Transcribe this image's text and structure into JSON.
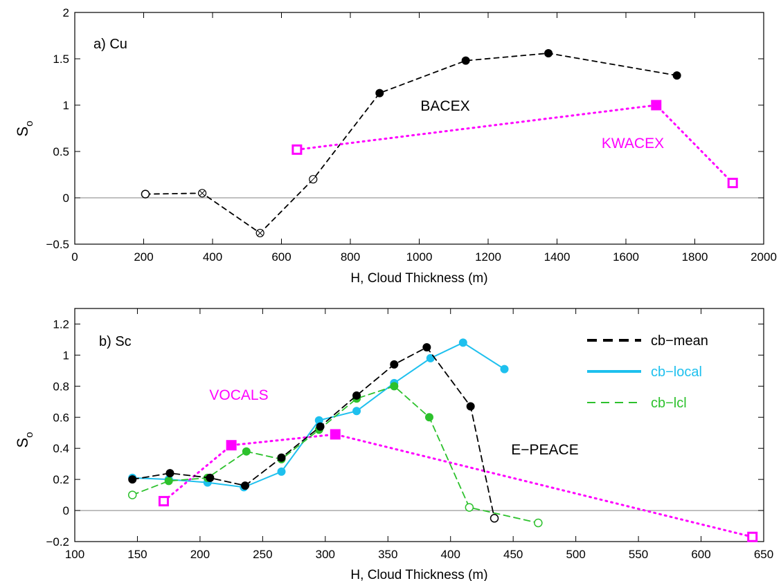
{
  "chart_data": [
    {
      "type": "scatter",
      "panel_label": "a) Cu",
      "xlabel": "H, Cloud Thickness (m)",
      "ylabel": "S",
      "ylabel_sub": "o",
      "xlim": [
        0,
        2000
      ],
      "ylim": [
        -0.5,
        2
      ],
      "xticks": [
        0,
        200,
        400,
        600,
        800,
        1000,
        1200,
        1400,
        1600,
        1800,
        2000
      ],
      "yticks": [
        -0.5,
        0,
        0.5,
        1,
        1.5,
        2
      ],
      "ytick_labels": [
        "−0.5",
        "0",
        "0.5",
        "1",
        "1.5",
        "2"
      ],
      "zero_line": true,
      "grid": false,
      "annotations": [
        {
          "text": "BACEX",
          "color": "#000000"
        },
        {
          "text": "KWACEX",
          "color": "#ff00ff"
        }
      ],
      "series": [
        {
          "key": "bacex",
          "color": "#000000",
          "line": "dashed",
          "points": [
            {
              "x": 205,
              "y": 0.04,
              "marker": "open-circle"
            },
            {
              "x": 370,
              "y": 0.05,
              "marker": "crossed-circle"
            },
            {
              "x": 538,
              "y": -0.38,
              "marker": "crossed-circle"
            },
            {
              "x": 692,
              "y": 0.2,
              "marker": "slashed-circle"
            },
            {
              "x": 885,
              "y": 1.13,
              "marker": "filled-circle"
            },
            {
              "x": 1135,
              "y": 1.48,
              "marker": "filled-circle"
            },
            {
              "x": 1375,
              "y": 1.56,
              "marker": "filled-circle"
            },
            {
              "x": 1748,
              "y": 1.32,
              "marker": "filled-circle"
            }
          ]
        },
        {
          "key": "kwacex",
          "color": "#ff00ff",
          "line": "dotted",
          "points": [
            {
              "x": 645,
              "y": 0.52,
              "marker": "open-square"
            },
            {
              "x": 1688,
              "y": 1.0,
              "marker": "filled-square"
            },
            {
              "x": 1910,
              "y": 0.16,
              "marker": "open-square"
            }
          ]
        }
      ]
    },
    {
      "type": "scatter",
      "panel_label": "b) Sc",
      "xlabel": "H, Cloud Thickness (m)",
      "ylabel": "S",
      "ylabel_sub": "o",
      "xlim": [
        100,
        650
      ],
      "ylim": [
        -0.2,
        1.3
      ],
      "xticks": [
        100,
        150,
        200,
        250,
        300,
        350,
        400,
        450,
        500,
        550,
        600,
        650
      ],
      "yticks": [
        -0.2,
        0,
        0.2,
        0.4,
        0.6,
        0.8,
        1,
        1.2
      ],
      "ytick_labels": [
        "−0.2",
        "0",
        "0.2",
        "0.4",
        "0.6",
        "0.8",
        "1",
        "1.2"
      ],
      "zero_line": true,
      "grid": false,
      "legend_position": "top-right",
      "annotations": [
        {
          "text": "VOCALS",
          "color": "#ff00ff"
        },
        {
          "text": "E−PEACE",
          "color": "#000000"
        }
      ],
      "series": [
        {
          "key": "vocals",
          "color": "#ff00ff",
          "line": "dotted",
          "points": [
            {
              "x": 171,
              "y": 0.06,
              "marker": "open-square"
            },
            {
              "x": 225,
              "y": 0.42,
              "marker": "filled-square"
            },
            {
              "x": 308,
              "y": 0.49,
              "marker": "filled-square"
            },
            {
              "x": 641,
              "y": -0.17,
              "marker": "open-square"
            }
          ]
        },
        {
          "key": "cb-local",
          "name": "cb−local",
          "color": "#1ec0ee",
          "line": "solid",
          "points": [
            {
              "x": 146,
              "y": 0.21,
              "marker": "filled-circle"
            },
            {
              "x": 175,
              "y": 0.2,
              "marker": "filled-circle"
            },
            {
              "x": 206,
              "y": 0.18,
              "marker": "filled-circle"
            },
            {
              "x": 235,
              "y": 0.15,
              "marker": "filled-circle"
            },
            {
              "x": 265,
              "y": 0.25,
              "marker": "filled-circle"
            },
            {
              "x": 295,
              "y": 0.58,
              "marker": "filled-circle"
            },
            {
              "x": 325,
              "y": 0.64,
              "marker": "filled-circle"
            },
            {
              "x": 355,
              "y": 0.82,
              "marker": "filled-circle"
            },
            {
              "x": 384,
              "y": 0.98,
              "marker": "filled-circle"
            },
            {
              "x": 410,
              "y": 1.08,
              "marker": "filled-circle"
            },
            {
              "x": 443,
              "y": 0.91,
              "marker": "filled-circle"
            }
          ]
        },
        {
          "key": "cb-lcl",
          "name": "cb−lcl",
          "color": "#2cc12c",
          "line": "dashed",
          "points": [
            {
              "x": 146,
              "y": 0.1,
              "marker": "open-circle"
            },
            {
              "x": 175,
              "y": 0.19,
              "marker": "filled-circle"
            },
            {
              "x": 206,
              "y": 0.21,
              "marker": "filled-circle"
            },
            {
              "x": 237,
              "y": 0.38,
              "marker": "filled-circle"
            },
            {
              "x": 265,
              "y": 0.33,
              "marker": "filled-circle"
            },
            {
              "x": 295,
              "y": 0.52,
              "marker": "filled-circle"
            },
            {
              "x": 325,
              "y": 0.72,
              "marker": "filled-circle"
            },
            {
              "x": 355,
              "y": 0.8,
              "marker": "filled-circle"
            },
            {
              "x": 383,
              "y": 0.6,
              "marker": "filled-circle"
            },
            {
              "x": 415,
              "y": 0.02,
              "marker": "open-circle"
            },
            {
              "x": 470,
              "y": -0.08,
              "marker": "open-circle"
            }
          ]
        },
        {
          "key": "cb-mean",
          "name": "cb−mean",
          "color": "#000000",
          "line": "dashed",
          "points": [
            {
              "x": 146,
              "y": 0.2,
              "marker": "filled-circle"
            },
            {
              "x": 176,
              "y": 0.24,
              "marker": "filled-circle"
            },
            {
              "x": 208,
              "y": 0.21,
              "marker": "filled-circle"
            },
            {
              "x": 236,
              "y": 0.16,
              "marker": "filled-circle"
            },
            {
              "x": 265,
              "y": 0.34,
              "marker": "filled-circle"
            },
            {
              "x": 296,
              "y": 0.54,
              "marker": "filled-circle"
            },
            {
              "x": 325,
              "y": 0.74,
              "marker": "filled-circle"
            },
            {
              "x": 355,
              "y": 0.94,
              "marker": "filled-circle"
            },
            {
              "x": 381,
              "y": 1.05,
              "marker": "filled-circle"
            },
            {
              "x": 416,
              "y": 0.67,
              "marker": "filled-circle"
            },
            {
              "x": 435,
              "y": -0.05,
              "marker": "open-circle"
            }
          ]
        }
      ],
      "legend": [
        {
          "label": "cb−mean",
          "series": "cb-mean"
        },
        {
          "label": "cb−local",
          "series": "cb-local"
        },
        {
          "label": "cb−lcl",
          "series": "cb-lcl"
        }
      ]
    }
  ]
}
